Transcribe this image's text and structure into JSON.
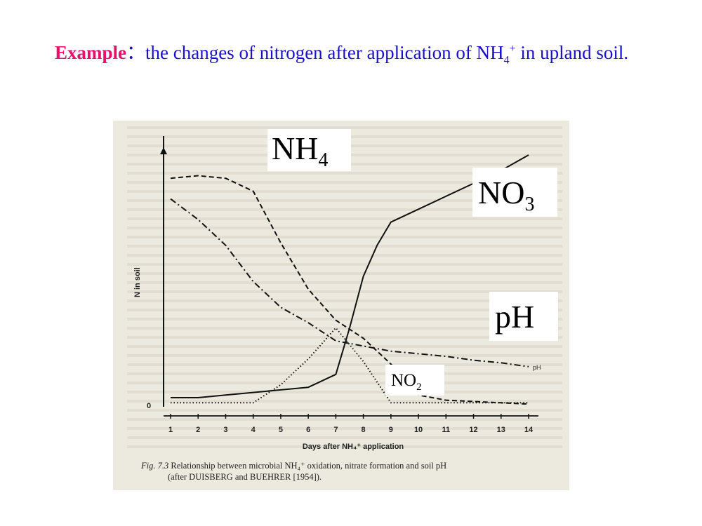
{
  "slide": {
    "title_keyword": "Example",
    "title_sep": "：",
    "title_text": "the changes of nitrogen after application of NH",
    "title_sub": "4",
    "title_sup": "+",
    "title_text_tail": " in upland soil."
  },
  "overlay_labels": {
    "nh4": {
      "base": "NH",
      "sub": "4"
    },
    "no3": {
      "base": "NO",
      "sub": "3"
    },
    "ph": {
      "text": "pH"
    },
    "no2": {
      "base": "NO",
      "sub": "2"
    }
  },
  "figure": {
    "caption_prefix": "Fig. 7.3",
    "caption_line1": " Relationship between microbial NH₄⁺ oxidation, nitrate formation and soil pH",
    "caption_line2": "(after DUISBERG and BUEHRER [1954])."
  },
  "chart_data": {
    "type": "line",
    "xlabel": "Days after NH₄⁺ application",
    "ylabel": "N in soil",
    "x_ticks": [
      1,
      2,
      3,
      4,
      5,
      6,
      7,
      8,
      9,
      10,
      11,
      12,
      13,
      14
    ],
    "y_ticks": [
      "0"
    ],
    "xlim": [
      1,
      14
    ],
    "ylim": [
      0,
      100
    ],
    "series": [
      {
        "name": "NH4",
        "style": "dashed",
        "points": [
          [
            1,
            88
          ],
          [
            2,
            89
          ],
          [
            3,
            88
          ],
          [
            4,
            83
          ],
          [
            5,
            63
          ],
          [
            6,
            45
          ],
          [
            7,
            33
          ],
          [
            8,
            26
          ],
          [
            9,
            16
          ],
          [
            10,
            4
          ],
          [
            11,
            2
          ],
          [
            12,
            1.5
          ],
          [
            13,
            1
          ],
          [
            14,
            0.5
          ]
        ]
      },
      {
        "name": "NO3",
        "style": "solid",
        "points": [
          [
            1,
            3
          ],
          [
            2,
            3
          ],
          [
            3,
            4
          ],
          [
            4,
            5
          ],
          [
            5,
            6
          ],
          [
            6,
            7
          ],
          [
            7,
            12
          ],
          [
            7.5,
            30
          ],
          [
            8,
            50
          ],
          [
            8.5,
            62
          ],
          [
            9,
            71
          ],
          [
            10,
            76
          ],
          [
            11,
            81
          ],
          [
            12,
            86
          ],
          [
            13,
            91
          ],
          [
            14,
            97
          ]
        ]
      },
      {
        "name": "NO2",
        "style": "dotted",
        "points": [
          [
            1,
            1
          ],
          [
            2,
            1
          ],
          [
            3,
            1
          ],
          [
            4,
            1
          ],
          [
            5,
            8
          ],
          [
            6,
            18
          ],
          [
            7,
            30
          ],
          [
            8,
            17
          ],
          [
            9,
            1
          ],
          [
            10,
            1
          ],
          [
            11,
            1
          ],
          [
            12,
            1
          ],
          [
            13,
            1
          ],
          [
            14,
            1
          ]
        ]
      },
      {
        "name": "pH",
        "style": "dashdot",
        "label": "pH",
        "points": [
          [
            1,
            80
          ],
          [
            2,
            72
          ],
          [
            3,
            62
          ],
          [
            4,
            48
          ],
          [
            5,
            38
          ],
          [
            6,
            32
          ],
          [
            7,
            25
          ],
          [
            8,
            23
          ],
          [
            9,
            21
          ],
          [
            10,
            20
          ],
          [
            11,
            19
          ],
          [
            12,
            17.5
          ],
          [
            13,
            16.5
          ],
          [
            14,
            15
          ]
        ]
      }
    ],
    "annotations": [
      "NO₃",
      "pH"
    ]
  }
}
